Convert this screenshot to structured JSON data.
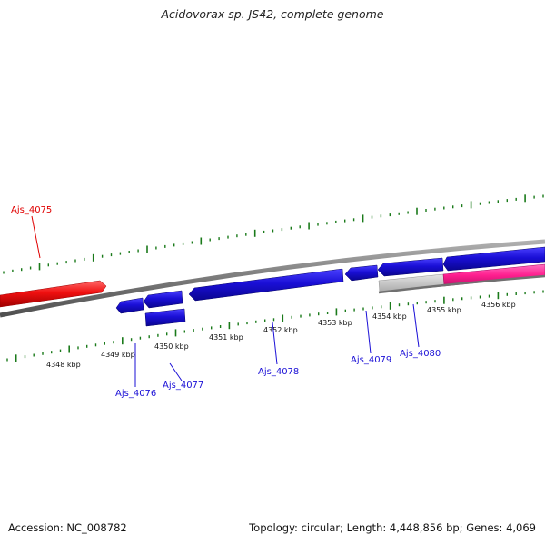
{
  "title": "Acidovorax sp. JS42, complete genome",
  "footer": {
    "accession": "Accession: NC_008782",
    "stats": "Topology: circular; Length: 4,448,856 bp; Genes: 4,069"
  },
  "colors": {
    "forward_gene": "#1a0fd6",
    "reverse_gene": "#ff1a1a",
    "highlight_gene": "#ff1f8f",
    "backbone": "#8a8a8a",
    "tick": "#1a7a1a",
    "pseudo_gene": "#c8c8c8"
  },
  "kbp_labels": [
    "4348 kbp",
    "4349 kbp",
    "4350 kbp",
    "4351 kbp",
    "4352 kbp",
    "4353 kbp",
    "4354 kbp",
    "4355 kbp",
    "4356 kbp"
  ],
  "genes": [
    {
      "name": "Ajs_4075",
      "strand": "reverse"
    },
    {
      "name": "Ajs_4076",
      "strand": "forward"
    },
    {
      "name": "Ajs_4077",
      "strand": "forward"
    },
    {
      "name": "Ajs_4078",
      "strand": "forward"
    },
    {
      "name": "Ajs_4079",
      "strand": "forward"
    },
    {
      "name": "Ajs_4080",
      "strand": "forward"
    }
  ]
}
